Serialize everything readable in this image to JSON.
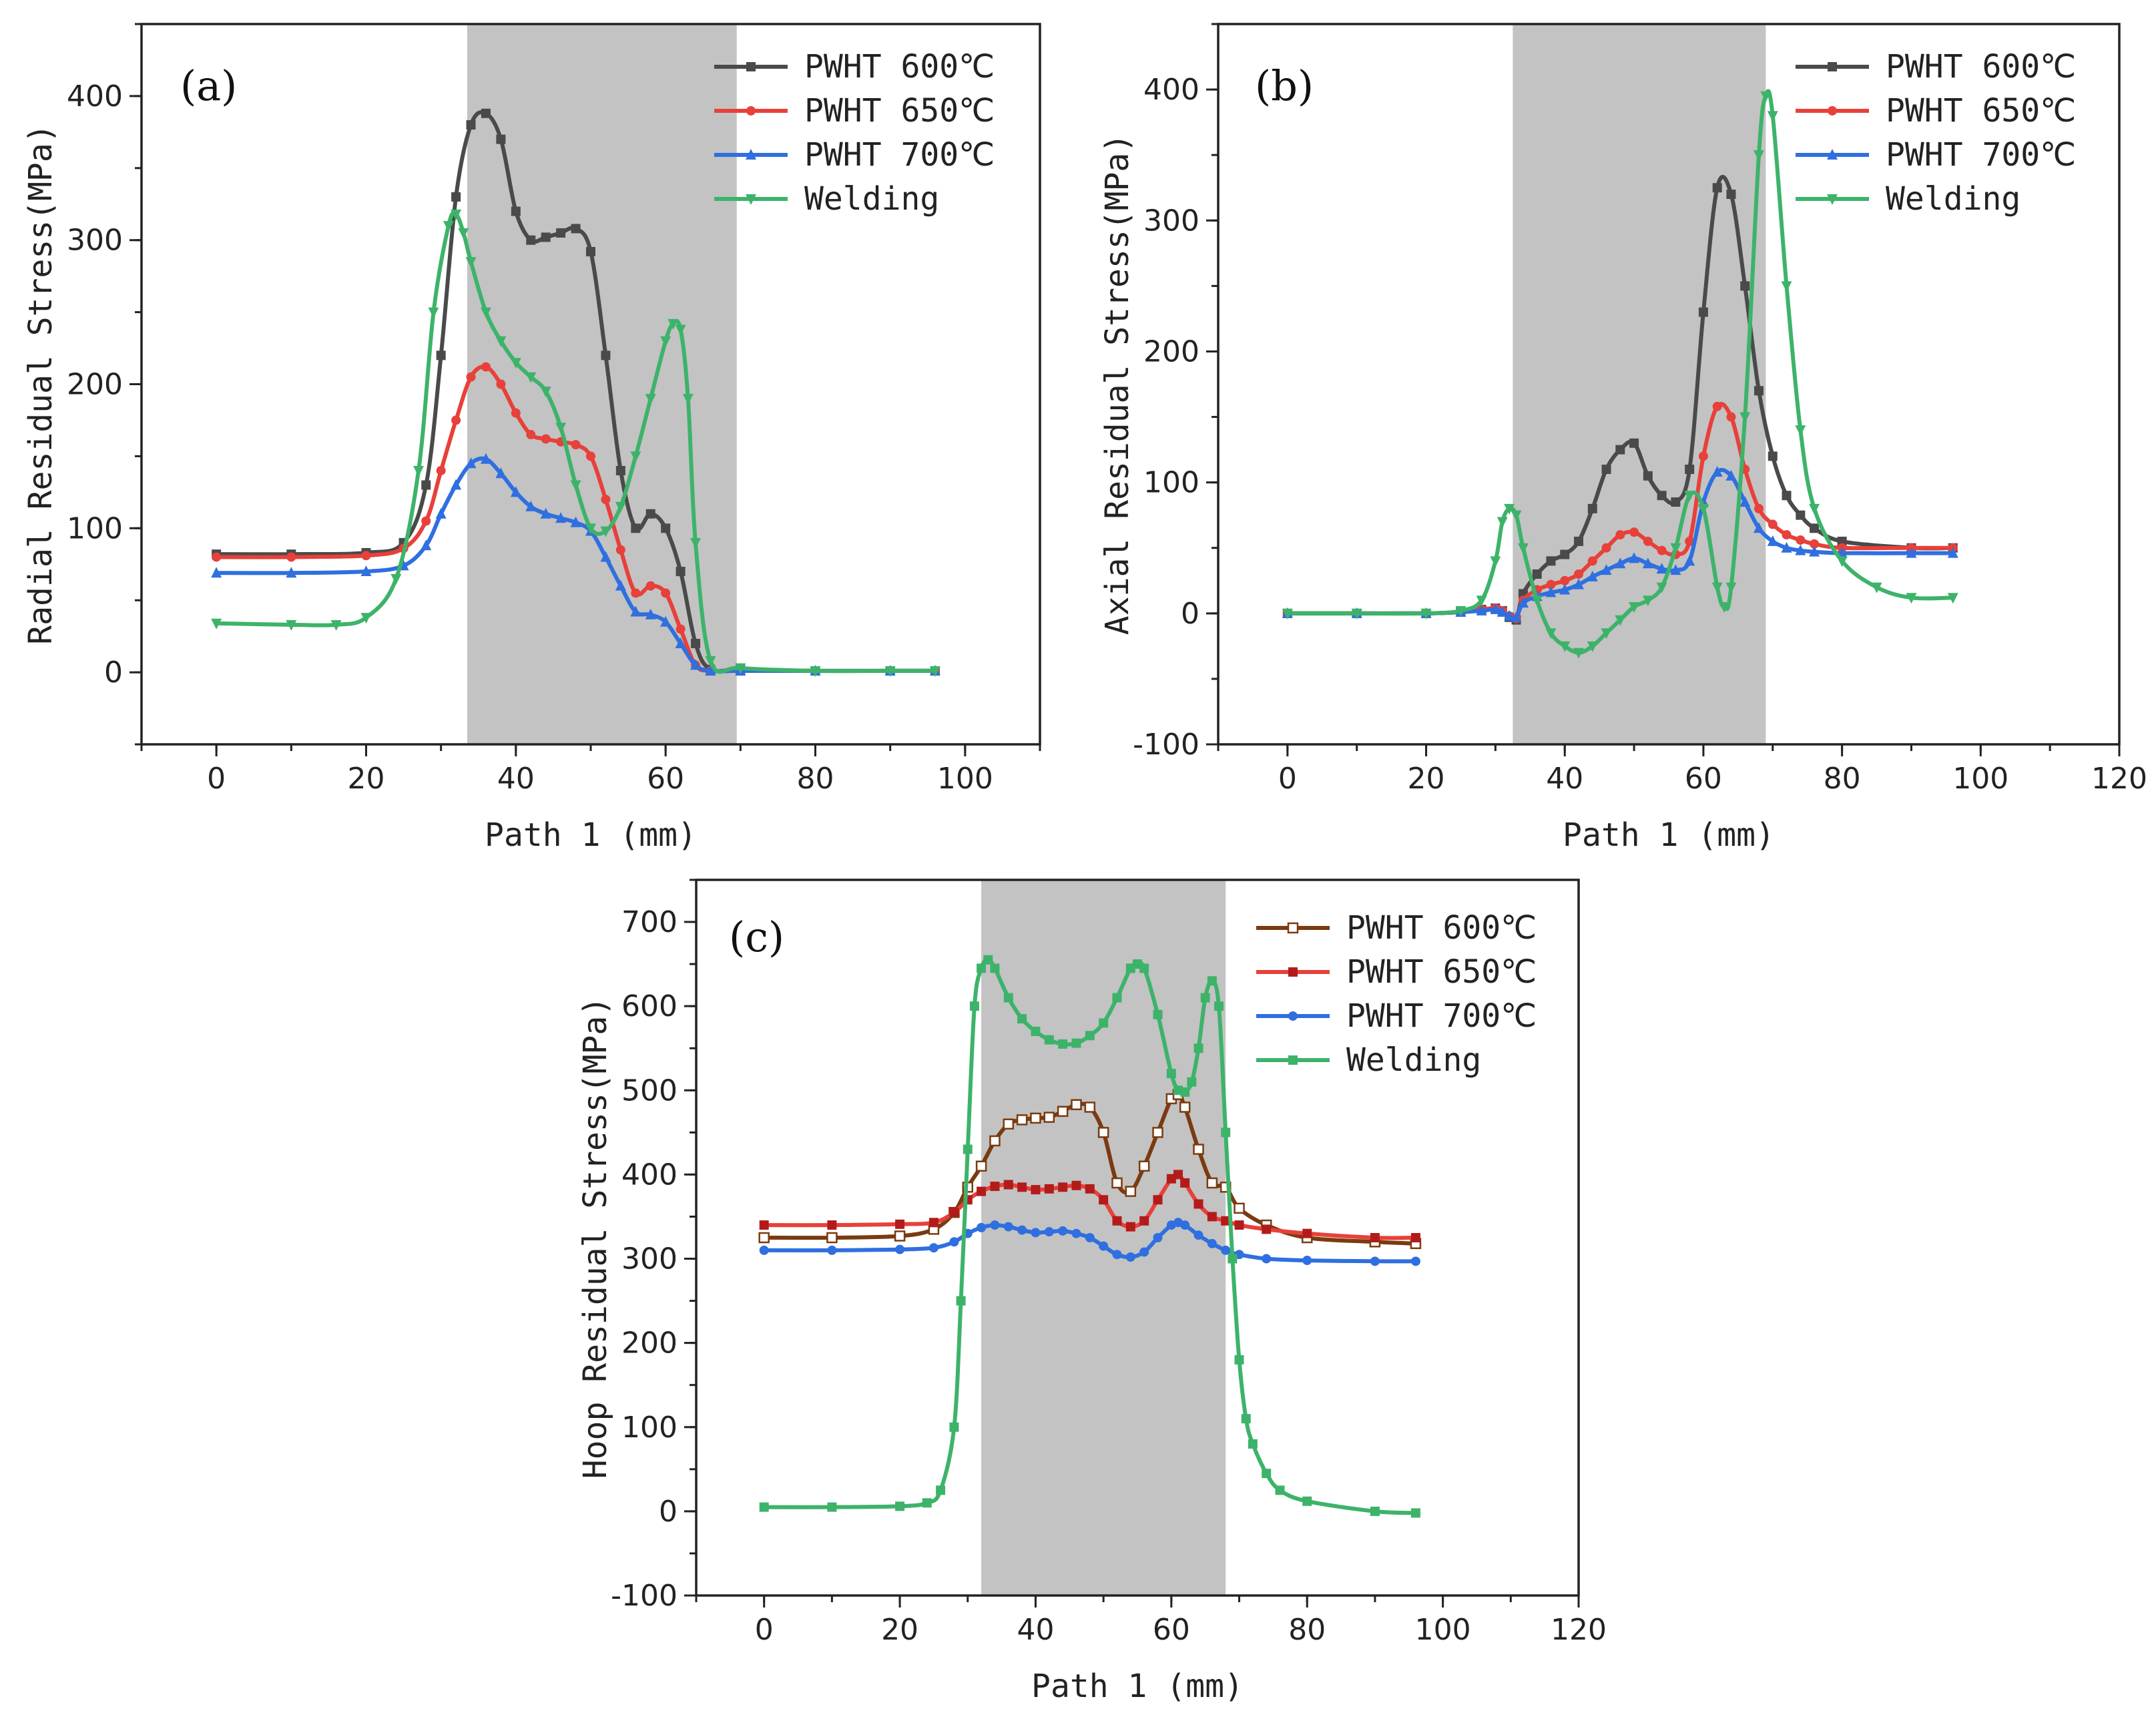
{
  "colors": {
    "PWHT 600℃": "#4a4a4a",
    "PWHT 600℃ (c)": "#7a3b10",
    "PWHT 650℃": "#e8403a",
    "PWHT 650℃ (c)": "#e8403a",
    "PWHT 700℃": "#2f6fe0",
    "Welding": "#3db36a",
    "shade": "#c3c3c3"
  },
  "chart_data": [
    {
      "type": "line",
      "panel": "(a)",
      "xlabel": "Path 1 (mm)",
      "ylabel": "Radial Residual Stress(MPa)",
      "xlim": [
        -10,
        110
      ],
      "ylim": [
        -50,
        450
      ],
      "xticks": [
        0,
        20,
        40,
        60,
        80,
        100
      ],
      "yticks": [
        0,
        100,
        200,
        300,
        400
      ],
      "shaded_region": [
        33.5,
        69.5
      ],
      "legend_position": "top-right",
      "series": [
        {
          "name": "PWHT 600℃",
          "marker": "square",
          "x": [
            0,
            10,
            20,
            25,
            28,
            30,
            32,
            34,
            36,
            38,
            40,
            42,
            44,
            46,
            48,
            50,
            52,
            54,
            56,
            58,
            60,
            62,
            64,
            66,
            70,
            80,
            90,
            96
          ],
          "y": [
            82,
            82,
            83,
            90,
            130,
            220,
            330,
            380,
            388,
            370,
            320,
            300,
            302,
            305,
            308,
            292,
            220,
            140,
            100,
            110,
            100,
            70,
            20,
            2,
            2,
            1,
            1,
            1
          ]
        },
        {
          "name": "PWHT 650℃",
          "marker": "circle",
          "x": [
            0,
            10,
            20,
            25,
            28,
            30,
            32,
            34,
            36,
            38,
            40,
            42,
            44,
            46,
            48,
            50,
            52,
            54,
            56,
            58,
            60,
            62,
            64,
            66,
            70,
            80,
            90,
            96
          ],
          "y": [
            80,
            80,
            81,
            86,
            105,
            140,
            175,
            205,
            212,
            200,
            180,
            165,
            162,
            160,
            158,
            150,
            120,
            85,
            55,
            60,
            55,
            30,
            5,
            1,
            1,
            1,
            1,
            1
          ]
        },
        {
          "name": "PWHT 700℃",
          "marker": "triangle-up",
          "x": [
            0,
            10,
            20,
            25,
            28,
            30,
            32,
            34,
            36,
            38,
            40,
            42,
            44,
            46,
            48,
            50,
            52,
            54,
            56,
            58,
            60,
            62,
            64,
            66,
            70,
            80,
            90,
            96
          ],
          "y": [
            69,
            69,
            70,
            74,
            88,
            110,
            130,
            145,
            148,
            138,
            125,
            115,
            110,
            107,
            104,
            98,
            80,
            60,
            42,
            40,
            35,
            20,
            5,
            1,
            1,
            1,
            1,
            1
          ]
        },
        {
          "name": "Welding",
          "marker": "triangle-down",
          "x": [
            0,
            10,
            16,
            20,
            24,
            27,
            29,
            31,
            32,
            33,
            34,
            36,
            38,
            40,
            42,
            44,
            46,
            48,
            50,
            52,
            54,
            56,
            58,
            60,
            61,
            62,
            63,
            64,
            66,
            70,
            80,
            90,
            96
          ],
          "y": [
            34,
            33,
            33,
            38,
            65,
            140,
            250,
            310,
            318,
            305,
            285,
            250,
            230,
            215,
            205,
            195,
            170,
            130,
            100,
            98,
            115,
            150,
            190,
            230,
            242,
            238,
            190,
            90,
            8,
            3,
            1,
            1,
            1
          ]
        }
      ]
    },
    {
      "type": "line",
      "panel": "(b)",
      "xlabel": "Path 1 (mm)",
      "ylabel": "Axial Residual Stress(MPa)",
      "xlim": [
        -10,
        120
      ],
      "ylim": [
        -100,
        450
      ],
      "xticks": [
        0,
        20,
        40,
        60,
        80,
        100,
        120
      ],
      "yticks": [
        -100,
        0,
        100,
        200,
        300,
        400
      ],
      "shaded_region": [
        32.5,
        69
      ],
      "legend_position": "top-right",
      "series": [
        {
          "name": "PWHT 600℃",
          "marker": "square",
          "x": [
            0,
            10,
            20,
            25,
            28,
            30,
            31,
            32,
            33,
            34,
            36,
            38,
            40,
            42,
            44,
            46,
            48,
            50,
            52,
            54,
            56,
            58,
            60,
            62,
            64,
            66,
            68,
            70,
            72,
            74,
            76,
            80,
            90,
            96
          ],
          "y": [
            0,
            0,
            0,
            1,
            3,
            4,
            2,
            -3,
            -5,
            15,
            30,
            40,
            45,
            55,
            80,
            110,
            125,
            130,
            105,
            90,
            85,
            110,
            230,
            325,
            320,
            250,
            170,
            120,
            90,
            75,
            65,
            55,
            50,
            50
          ]
        },
        {
          "name": "PWHT 650℃",
          "marker": "circle",
          "x": [
            0,
            10,
            20,
            25,
            28,
            30,
            31,
            32,
            33,
            34,
            36,
            38,
            40,
            42,
            44,
            46,
            48,
            50,
            52,
            54,
            56,
            58,
            60,
            62,
            64,
            66,
            68,
            70,
            72,
            74,
            76,
            80,
            90,
            96
          ],
          "y": [
            0,
            0,
            0,
            1,
            3,
            4,
            2,
            -2,
            -4,
            10,
            18,
            22,
            25,
            30,
            40,
            50,
            60,
            62,
            55,
            48,
            45,
            55,
            120,
            158,
            150,
            110,
            80,
            68,
            60,
            56,
            53,
            50,
            50,
            50
          ]
        },
        {
          "name": "PWHT 700℃",
          "marker": "triangle-up",
          "x": [
            0,
            10,
            20,
            25,
            28,
            30,
            31,
            32,
            33,
            34,
            36,
            38,
            40,
            42,
            44,
            46,
            48,
            50,
            52,
            54,
            56,
            58,
            60,
            62,
            64,
            66,
            68,
            70,
            72,
            74,
            76,
            80,
            90,
            96
          ],
          "y": [
            0,
            0,
            0,
            1,
            2,
            3,
            1,
            -2,
            -3,
            8,
            13,
            16,
            18,
            22,
            28,
            33,
            38,
            42,
            38,
            34,
            33,
            40,
            85,
            108,
            105,
            85,
            65,
            55,
            50,
            48,
            47,
            46,
            46,
            46
          ]
        },
        {
          "name": "Welding",
          "marker": "triangle-down",
          "x": [
            0,
            10,
            20,
            25,
            28,
            30,
            31,
            32,
            33,
            34,
            36,
            38,
            40,
            42,
            44,
            46,
            48,
            50,
            52,
            54,
            56,
            58,
            60,
            62,
            63,
            64,
            66,
            68,
            69,
            70,
            72,
            74,
            76,
            80,
            85,
            90,
            96
          ],
          "y": [
            0,
            0,
            0,
            2,
            10,
            40,
            70,
            80,
            75,
            50,
            10,
            -15,
            -25,
            -30,
            -25,
            -15,
            -5,
            5,
            10,
            20,
            50,
            90,
            80,
            20,
            5,
            20,
            150,
            350,
            395,
            380,
            250,
            140,
            80,
            40,
            20,
            12,
            12
          ]
        }
      ]
    },
    {
      "type": "line",
      "panel": "(c)",
      "xlabel": "Path 1 (mm)",
      "ylabel": "Hoop Residual Stress(MPa)",
      "xlim": [
        -10,
        120
      ],
      "ylim": [
        -100,
        750
      ],
      "xticks": [
        0,
        20,
        40,
        60,
        80,
        100,
        120
      ],
      "yticks": [
        -100,
        0,
        100,
        200,
        300,
        400,
        500,
        600,
        700
      ],
      "shaded_region": [
        32,
        68
      ],
      "legend_position": "top-right",
      "series": [
        {
          "name": "PWHT 600℃",
          "marker": "open-square",
          "x": [
            0,
            10,
            20,
            25,
            28,
            30,
            32,
            34,
            36,
            38,
            40,
            42,
            44,
            46,
            48,
            50,
            52,
            54,
            56,
            58,
            60,
            61,
            62,
            64,
            66,
            68,
            70,
            74,
            80,
            90,
            96
          ],
          "y": [
            325,
            325,
            327,
            335,
            355,
            385,
            410,
            440,
            460,
            465,
            467,
            468,
            475,
            483,
            480,
            450,
            390,
            380,
            410,
            450,
            490,
            495,
            480,
            430,
            390,
            385,
            360,
            340,
            325,
            320,
            318
          ]
        },
        {
          "name": "PWHT 650℃",
          "marker": "square",
          "x": [
            0,
            10,
            20,
            25,
            28,
            30,
            32,
            34,
            36,
            38,
            40,
            42,
            44,
            46,
            48,
            50,
            52,
            54,
            56,
            58,
            60,
            61,
            62,
            64,
            66,
            68,
            70,
            74,
            80,
            90,
            96
          ],
          "y": [
            340,
            340,
            341,
            343,
            355,
            370,
            380,
            386,
            388,
            385,
            382,
            383,
            385,
            387,
            383,
            370,
            345,
            338,
            345,
            370,
            395,
            400,
            390,
            365,
            350,
            345,
            340,
            335,
            330,
            325,
            325
          ]
        },
        {
          "name": "PWHT 700℃",
          "marker": "circle",
          "x": [
            0,
            10,
            20,
            25,
            28,
            30,
            32,
            34,
            36,
            38,
            40,
            42,
            44,
            46,
            48,
            50,
            52,
            54,
            56,
            58,
            60,
            61,
            62,
            64,
            66,
            68,
            70,
            74,
            80,
            90,
            96
          ],
          "y": [
            310,
            310,
            311,
            313,
            320,
            330,
            337,
            340,
            338,
            334,
            331,
            332,
            333,
            330,
            325,
            315,
            305,
            302,
            308,
            325,
            340,
            343,
            340,
            328,
            318,
            310,
            305,
            300,
            298,
            297,
            297
          ]
        },
        {
          "name": "Welding",
          "marker": "filled-square",
          "x": [
            0,
            10,
            20,
            24,
            26,
            28,
            29,
            30,
            31,
            32,
            33,
            34,
            36,
            38,
            40,
            42,
            44,
            46,
            48,
            50,
            52,
            54,
            55,
            56,
            58,
            60,
            61,
            62,
            63,
            64,
            65,
            66,
            67,
            68,
            69,
            70,
            71,
            72,
            74,
            76,
            80,
            90,
            96
          ],
          "y": [
            5,
            5,
            6,
            10,
            25,
            100,
            250,
            430,
            600,
            645,
            655,
            645,
            610,
            585,
            570,
            560,
            555,
            556,
            565,
            580,
            610,
            645,
            650,
            645,
            590,
            520,
            500,
            498,
            510,
            550,
            610,
            630,
            600,
            450,
            300,
            180,
            110,
            80,
            45,
            25,
            12,
            0,
            -2
          ]
        }
      ]
    }
  ]
}
